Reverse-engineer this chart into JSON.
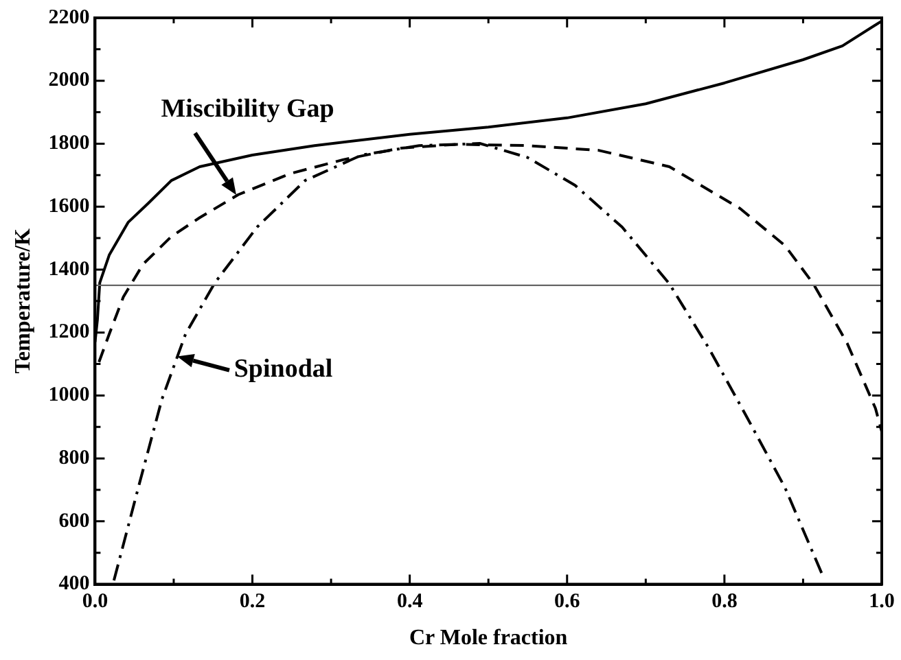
{
  "chart_data": {
    "type": "line",
    "xlabel": "Cr Mole fraction",
    "ylabel": "Temperature/K",
    "xlim": [
      0,
      1
    ],
    "ylim": [
      400,
      2200
    ],
    "xticks": [
      {
        "value": 0,
        "label": "0.0"
      },
      {
        "value": 0.1,
        "label": null
      },
      {
        "value": 0.2,
        "label": "0.2"
      },
      {
        "value": 0.3,
        "label": null
      },
      {
        "value": 0.4,
        "label": "0.4"
      },
      {
        "value": 0.5,
        "label": null
      },
      {
        "value": 0.6,
        "label": "0.6"
      },
      {
        "value": 0.7,
        "label": null
      },
      {
        "value": 0.8,
        "label": "0.8"
      },
      {
        "value": 0.9,
        "label": null
      },
      {
        "value": 1,
        "label": "1.0"
      }
    ],
    "yticks": [
      400,
      {
        "value": 500,
        "label": null
      },
      600,
      {
        "value": 700,
        "label": null
      },
      800,
      {
        "value": 900,
        "label": null
      },
      1000,
      {
        "value": 1100,
        "label": null
      },
      1200,
      {
        "value": 1300,
        "label": null
      },
      1400,
      {
        "value": 1500,
        "label": null
      },
      1600,
      {
        "value": 1700,
        "label": null
      },
      1800,
      {
        "value": 1900,
        "label": null
      },
      2000,
      {
        "value": 2100,
        "label": null
      },
      2200
    ],
    "grid": false,
    "legend": false,
    "marker": "none",
    "series": [
      {
        "color": "#000000",
        "line_style": "solid",
        "x": [
          0,
          0.003,
          0.006,
          0.018,
          0.042,
          0.067,
          0.097,
          0.133,
          0.2,
          0.279,
          0.4,
          0.5,
          0.6,
          0.7,
          0.8,
          0.9,
          0.95,
          1.0
        ],
        "values": [
          1170,
          1240,
          1358,
          1446,
          1550,
          1609,
          1683,
          1727,
          1764,
          1794,
          1830,
          1853,
          1882,
          1927,
          1993,
          2067,
          2111,
          2190
        ]
      },
      {
        "color": "#000000",
        "line_style": "dashed",
        "x": [
          0.005,
          0.018,
          0.036,
          0.061,
          0.097,
          0.133,
          0.182,
          0.248,
          0.315,
          0.388,
          0.46,
          0.55,
          0.64,
          0.73,
          0.82,
          0.877,
          0.913,
          0.956,
          0.992,
          1.0
        ],
        "values": [
          1106,
          1195,
          1313,
          1417,
          1505,
          1565,
          1638,
          1705,
          1749,
          1786,
          1798,
          1794,
          1779,
          1727,
          1594,
          1476,
          1355,
          1166,
          959,
          885
        ]
      },
      {
        "color": "#000000",
        "line_style": "dashdot",
        "x": [
          0.024,
          0.055,
          0.085,
          0.115,
          0.152,
          0.206,
          0.267,
          0.339,
          0.412,
          0.46,
          0.489,
          0.55,
          0.61,
          0.67,
          0.73,
          0.78,
          0.829,
          0.877,
          0.925
        ],
        "values": [
          412,
          707,
          988,
          1195,
          1357,
          1535,
          1683,
          1764,
          1794,
          1798,
          1801,
          1756,
          1668,
          1535,
          1355,
          1151,
          929,
          707,
          427
        ]
      }
    ],
    "ref_lines": [
      {
        "axis": "y",
        "value": 1350,
        "color": "#666666"
      }
    ],
    "annotations": [
      {
        "text": "Miscibility Gap",
        "x": 0.18,
        "y": 1638
      },
      {
        "text": "Spinodal",
        "x": 0.105,
        "y": 1125
      }
    ]
  }
}
